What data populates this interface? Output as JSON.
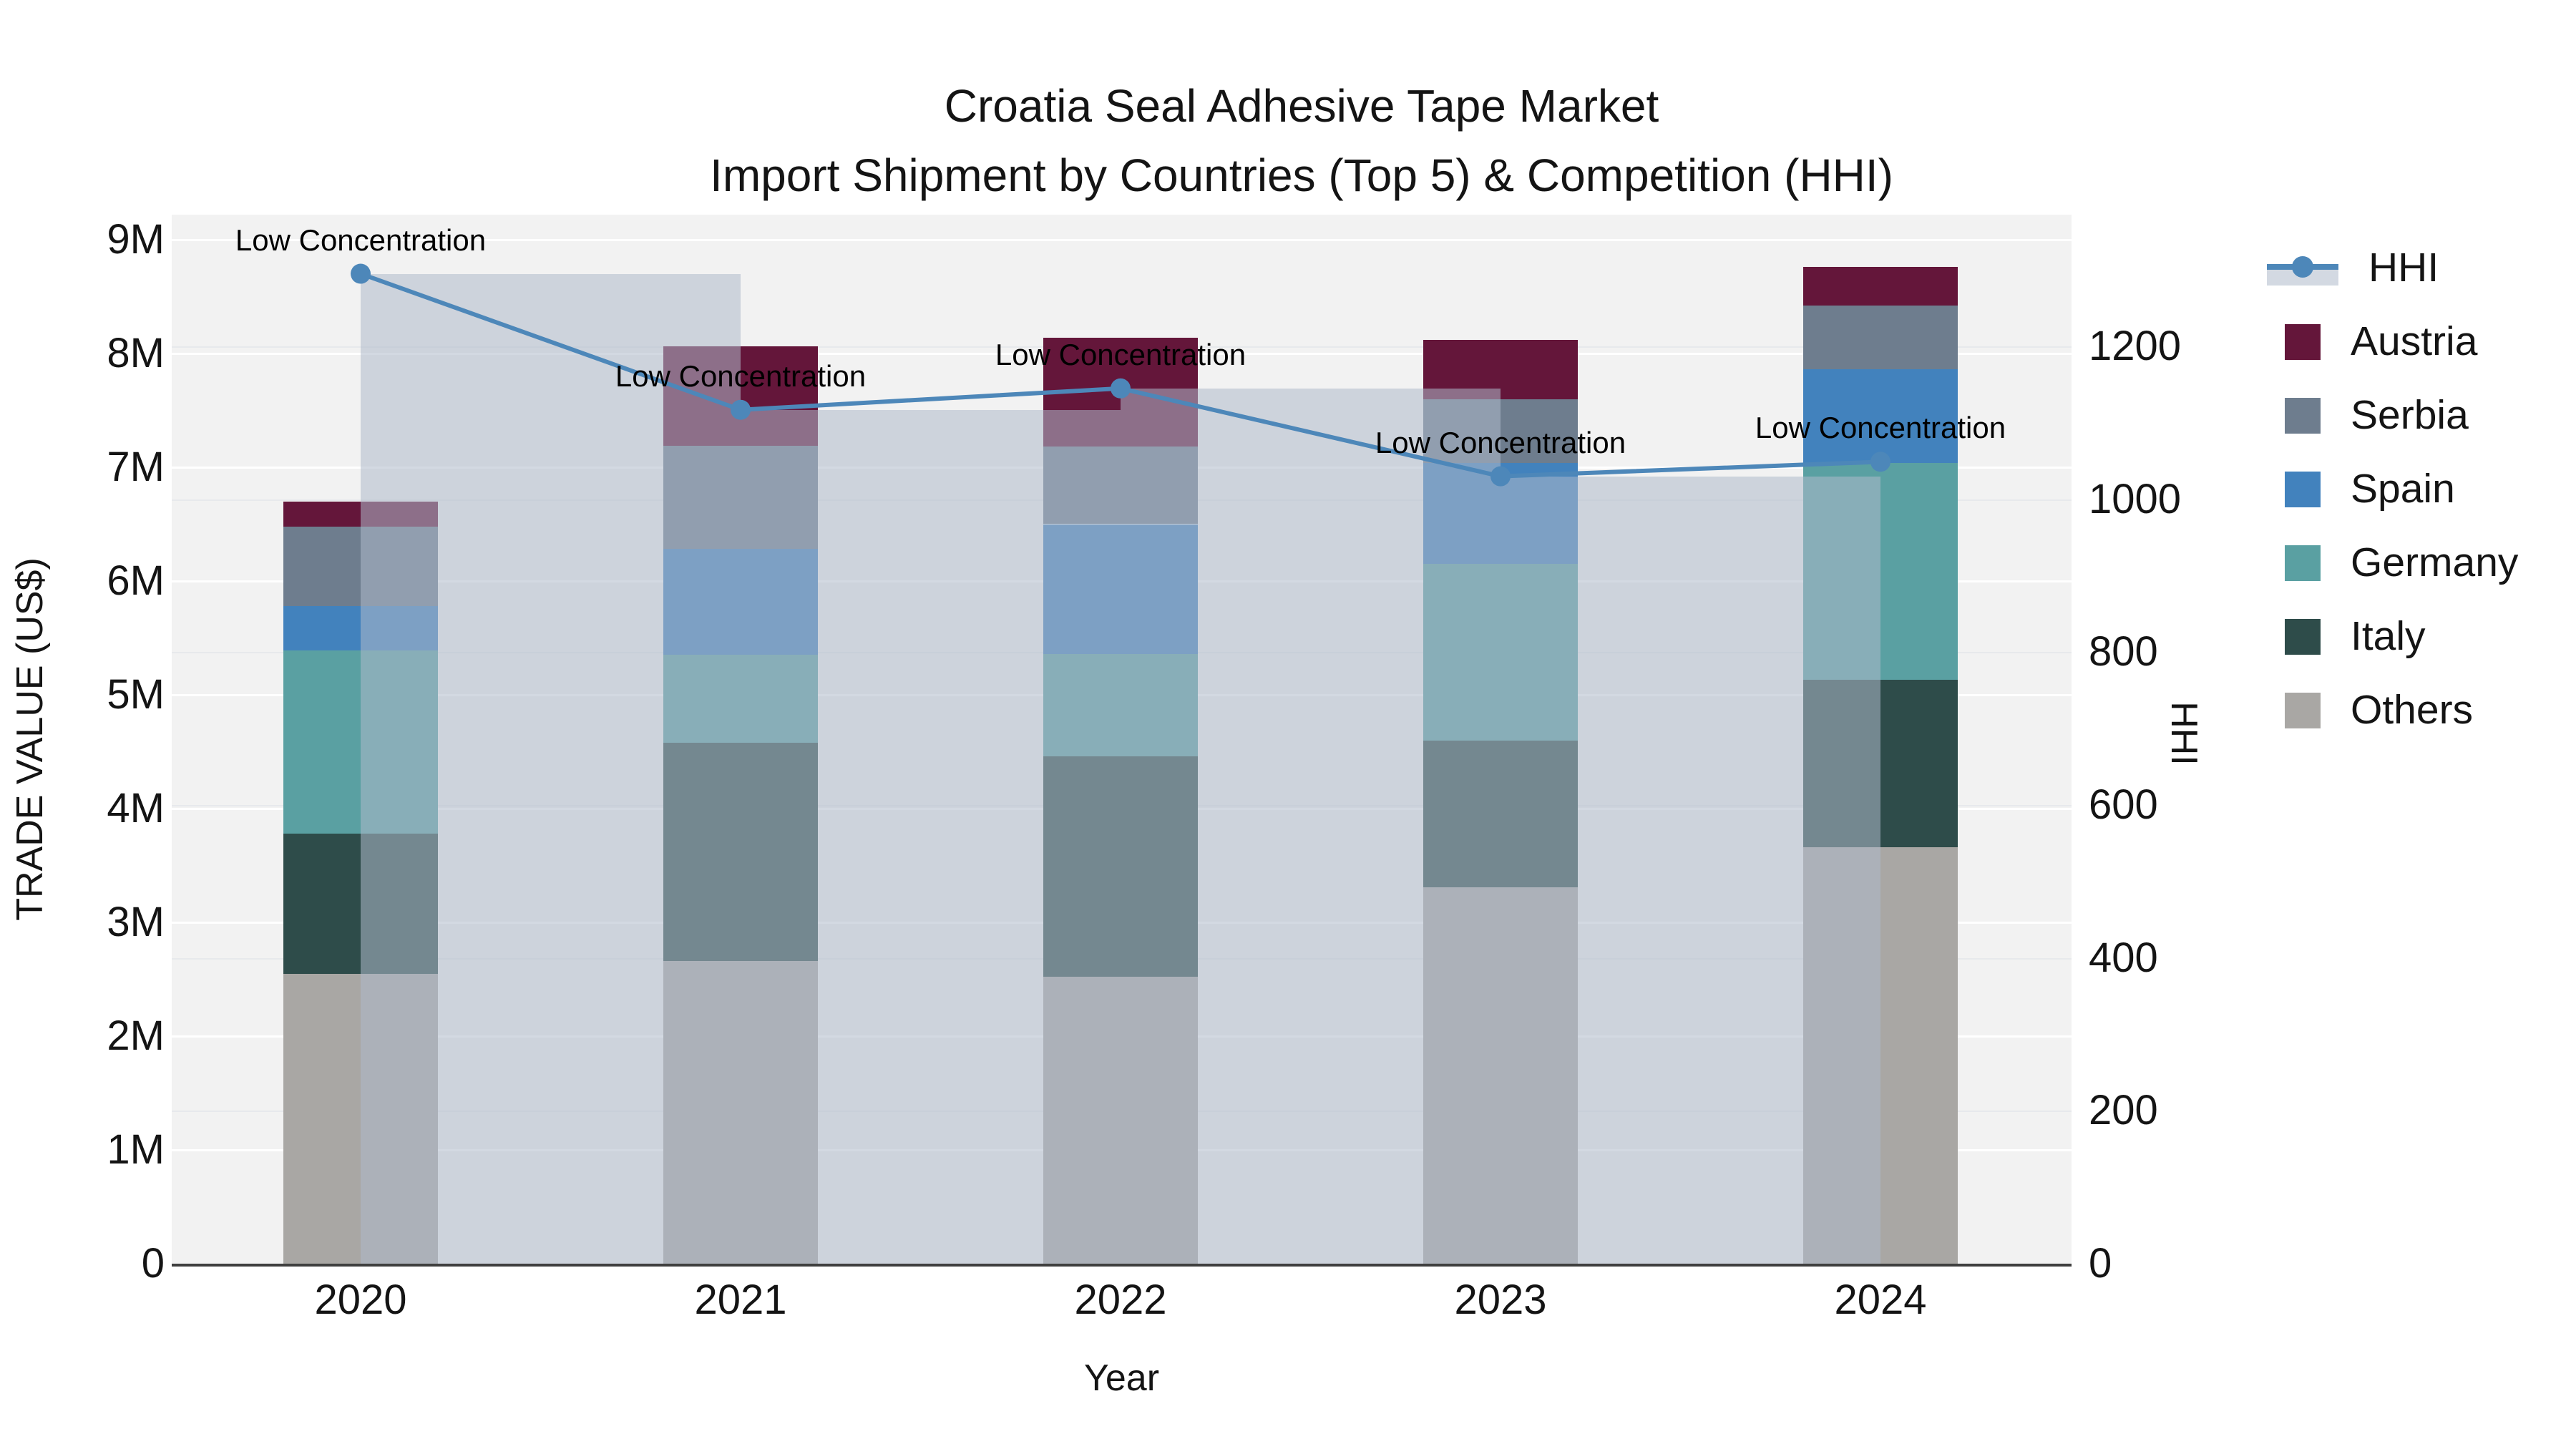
{
  "title": {
    "line1": "Croatia Seal Adhesive Tape Market",
    "line2": "Import Shipment by Countries (Top 5) & Competition (HHI)"
  },
  "chart_data": {
    "type": "bar",
    "stacked": true,
    "title": "Croatia Seal Adhesive Tape Market Import Shipment by Countries (Top 5) & Competition (HHI)",
    "xlabel": "Year",
    "ylabel_left": "TRADE VALUE (US$)",
    "ylabel_right": "HHI",
    "categories": [
      "2020",
      "2021",
      "2022",
      "2023",
      "2024"
    ],
    "series": [
      {
        "name": "Others",
        "color": "#a9a7a4",
        "values": [
          2.55,
          2.66,
          2.52,
          3.31,
          3.66
        ]
      },
      {
        "name": "Italy",
        "color": "#2e4c4a",
        "values": [
          1.23,
          1.92,
          1.94,
          1.29,
          1.47
        ]
      },
      {
        "name": "Germany",
        "color": "#5aa0a2",
        "values": [
          1.61,
          0.77,
          0.9,
          1.55,
          1.91
        ]
      },
      {
        "name": "Spain",
        "color": "#4282bd",
        "values": [
          0.39,
          0.93,
          1.14,
          0.89,
          0.82
        ]
      },
      {
        "name": "Serbia",
        "color": "#6e7d8e",
        "values": [
          0.7,
          0.91,
          0.68,
          0.56,
          0.56
        ]
      },
      {
        "name": "Austria",
        "color": "#64163a",
        "values": [
          0.22,
          0.87,
          0.96,
          0.52,
          0.34
        ]
      }
    ],
    "totals_m": [
      6.7,
      8.06,
      8.14,
      8.12,
      8.76
    ],
    "values_unit": "M US$",
    "hhi_line": {
      "name": "HHI",
      "color": "#4d87b9",
      "fill_color": "rgba(174,185,202,0.55)",
      "values": [
        1295,
        1117,
        1145,
        1030,
        1049
      ]
    },
    "annotations": [
      {
        "year": "2020",
        "text": "Low Concentration"
      },
      {
        "year": "2021",
        "text": "Low Concentration"
      },
      {
        "year": "2022",
        "text": "Low Concentration"
      },
      {
        "year": "2023",
        "text": "Low Concentration"
      },
      {
        "year": "2024",
        "text": "Low Concentration"
      }
    ],
    "left_axis": {
      "ticks": [
        "0",
        "1M",
        "2M",
        "3M",
        "4M",
        "5M",
        "6M",
        "7M",
        "8M",
        "9M"
      ],
      "range": [
        0,
        9.22
      ],
      "grid": true
    },
    "right_axis": {
      "ticks": [
        "0",
        "200",
        "400",
        "600",
        "800",
        "1000",
        "1200"
      ],
      "range": [
        0,
        1372
      ],
      "grid": true
    },
    "legend": {
      "position": "right",
      "entries": [
        "HHI",
        "Austria",
        "Serbia",
        "Spain",
        "Germany",
        "Italy",
        "Others"
      ]
    },
    "plot_bg_color": "#f2f2f2",
    "text_color": "#141414"
  }
}
